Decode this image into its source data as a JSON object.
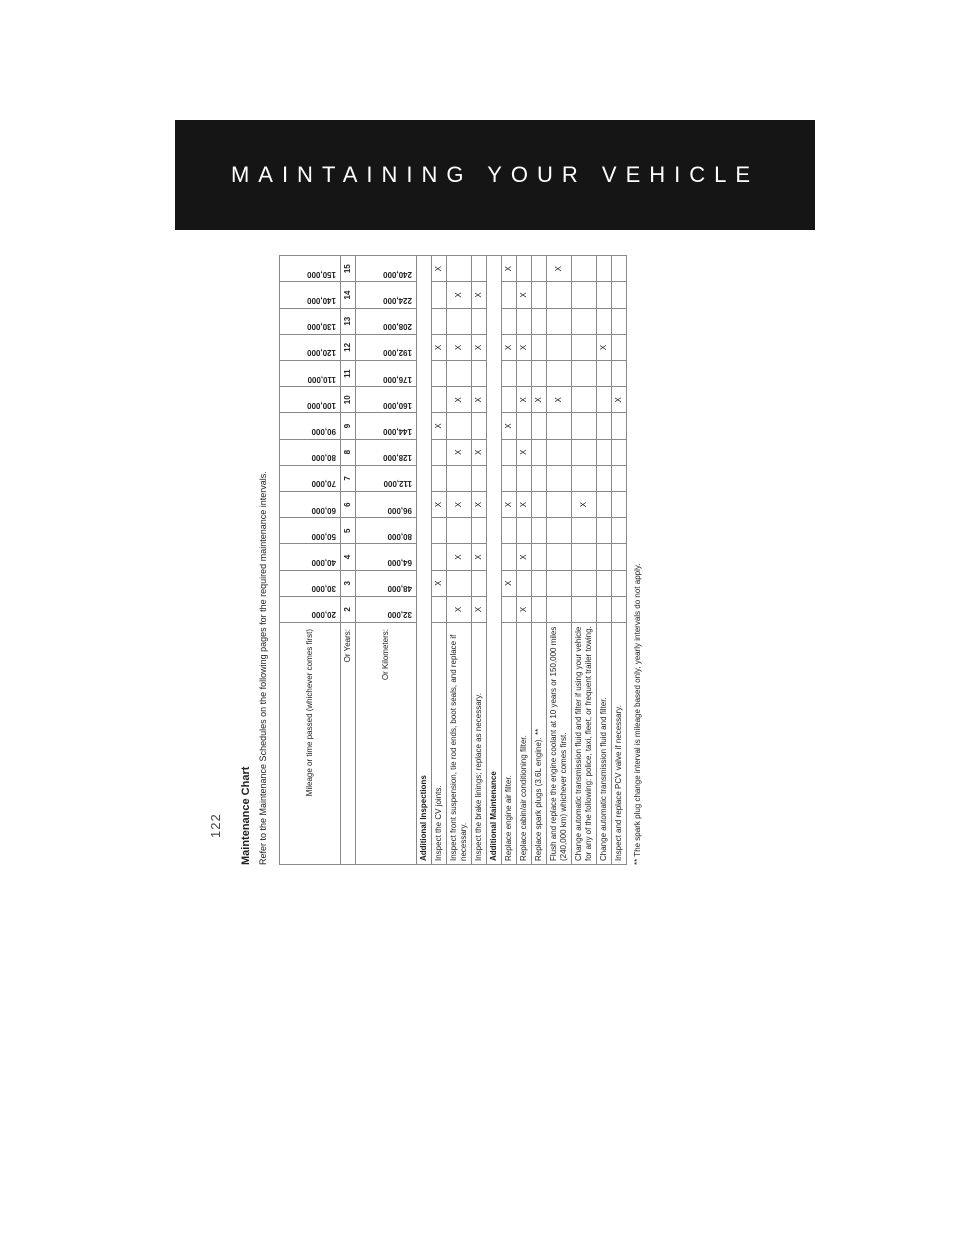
{
  "banner": {
    "text": "MAINTAINING YOUR VEHICLE"
  },
  "page_number": "122",
  "chart": {
    "title": "Maintenance Chart",
    "subtitle": "Refer to the Maintenance Schedules on the following pages for the required maintenance intervals.",
    "header_labels": {
      "mileage": "Mileage or time passed (whichever comes first)",
      "years": "Or Years:",
      "km": "Or Kilometers:"
    },
    "columns_mileage": [
      "20,000",
      "30,000",
      "40,000",
      "50,000",
      "60,000",
      "70,000",
      "80,000",
      "90,000",
      "100,000",
      "110,000",
      "120,000",
      "130,000",
      "140,000",
      "150,000"
    ],
    "columns_years": [
      "2",
      "3",
      "4",
      "5",
      "6",
      "7",
      "8",
      "9",
      "10",
      "11",
      "12",
      "13",
      "14",
      "15"
    ],
    "columns_km": [
      "32,000",
      "48,000",
      "64,000",
      "80,000",
      "96,000",
      "112,000",
      "128,000",
      "144,000",
      "160,000",
      "176,000",
      "192,000",
      "208,000",
      "224,000",
      "240,000"
    ],
    "sections": [
      {
        "heading": "Additional Inspections",
        "rows": [
          {
            "desc": "Inspect the CV joints.",
            "marks": [
              "",
              "X",
              "",
              "",
              "X",
              "",
              "",
              "X",
              "",
              "",
              "X",
              "",
              "",
              "X"
            ]
          },
          {
            "desc": "Inspect front suspension, tie rod ends, boot seals, and replace if necessary.",
            "marks": [
              "X",
              "",
              "X",
              "",
              "X",
              "",
              "X",
              "",
              "X",
              "",
              "X",
              "",
              "X",
              ""
            ]
          },
          {
            "desc": "Inspect the brake linings; replace as necessary.",
            "marks": [
              "X",
              "",
              "X",
              "",
              "X",
              "",
              "X",
              "",
              "X",
              "",
              "X",
              "",
              "X",
              ""
            ]
          }
        ]
      },
      {
        "heading": "Additional Maintenance",
        "rows": [
          {
            "desc": "Replace engine air filter.",
            "marks": [
              "",
              "X",
              "",
              "",
              "X",
              "",
              "",
              "X",
              "",
              "",
              "X",
              "",
              "",
              "X"
            ]
          },
          {
            "desc": "Replace cabin/air conditioning filter.",
            "marks": [
              "X",
              "",
              "X",
              "",
              "X",
              "",
              "X",
              "",
              "X",
              "",
              "X",
              "",
              "X",
              ""
            ]
          },
          {
            "desc": "Replace spark plugs (3.6L engine). **",
            "marks": [
              "",
              "",
              "",
              "",
              "",
              "",
              "",
              "",
              "X",
              "",
              "",
              "",
              "",
              ""
            ]
          },
          {
            "desc": "Flush and replace the engine coolant at 10 years or 150,000 miles (240,000 km) whichever comes first.",
            "marks": [
              "",
              "",
              "",
              "",
              "",
              "",
              "",
              "",
              "X",
              "",
              "",
              "",
              "",
              "X"
            ]
          },
          {
            "desc": "Change automatic transmission fluid and filter if using your vehicle for any of the following: police, taxi, fleet, or frequent trailer towing.",
            "marks": [
              "",
              "",
              "",
              "",
              "X",
              "",
              "",
              "",
              "",
              "",
              "",
              "",
              "",
              ""
            ]
          },
          {
            "desc": "Change automatic transmission fluid and filter.",
            "marks": [
              "",
              "",
              "",
              "",
              "",
              "",
              "",
              "",
              "",
              "",
              "X",
              "",
              "",
              ""
            ]
          },
          {
            "desc": "Inspect and replace PCV valve if necessary.",
            "marks": [
              "",
              "",
              "",
              "",
              "",
              "",
              "",
              "",
              "X",
              "",
              "",
              "",
              "",
              ""
            ]
          }
        ]
      }
    ],
    "footnote": "** The spark plug change interval is mileage based only, yearly intervals do not apply."
  },
  "colors": {
    "banner_bg": "#151515",
    "banner_text": "#ffffff",
    "border": "#888888",
    "text": "#222222"
  }
}
